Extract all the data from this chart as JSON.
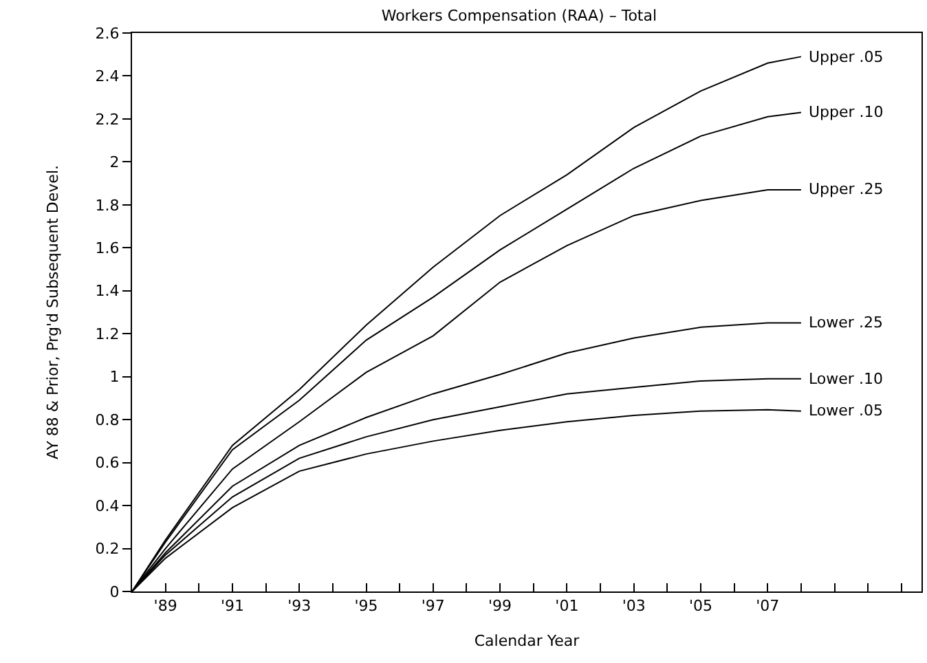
{
  "chart_data": {
    "type": "line",
    "title": "Workers Compensation (RAA) – Total",
    "xlabel": "Calendar Year",
    "ylabel": "AY 88 & Prior, Prg'd Subsequent Devel.",
    "x": [
      1988,
      1989,
      1991,
      1993,
      1995,
      1997,
      1999,
      2001,
      2003,
      2005,
      2007,
      2008
    ],
    "series": [
      {
        "name": "Upper .05",
        "color": "#000000",
        "values": [
          0,
          0.24,
          0.68,
          0.94,
          1.24,
          1.51,
          1.75,
          1.94,
          2.16,
          2.33,
          2.46,
          2.49
        ]
      },
      {
        "name": "Upper .10",
        "color": "#000000",
        "values": [
          0,
          0.23,
          0.66,
          0.89,
          1.17,
          1.37,
          1.59,
          1.78,
          1.97,
          2.12,
          2.21,
          2.23
        ]
      },
      {
        "name": "Upper .25",
        "color": "#000000",
        "values": [
          0,
          0.2,
          0.57,
          0.79,
          1.02,
          1.19,
          1.44,
          1.61,
          1.75,
          1.82,
          1.87,
          1.87
        ]
      },
      {
        "name": "Lower .25",
        "color": "#000000",
        "values": [
          0,
          0.18,
          0.49,
          0.68,
          0.81,
          0.92,
          1.01,
          1.11,
          1.18,
          1.23,
          1.25,
          1.25
        ]
      },
      {
        "name": "Lower .10",
        "color": "#000000",
        "values": [
          0,
          0.17,
          0.44,
          0.62,
          0.72,
          0.8,
          0.86,
          0.92,
          0.95,
          0.98,
          0.99,
          0.99
        ]
      },
      {
        "name": "Lower .05",
        "color": "#000000",
        "values": [
          0,
          0.155,
          0.39,
          0.56,
          0.64,
          0.7,
          0.75,
          0.79,
          0.82,
          0.84,
          0.846,
          0.84
        ]
      }
    ],
    "xlim": [
      1988,
      2011.6
    ],
    "xticks": [
      {
        "value": 1989,
        "label": "'89"
      },
      {
        "value": 1990,
        "label": null
      },
      {
        "value": 1991,
        "label": "'91"
      },
      {
        "value": 1992,
        "label": null
      },
      {
        "value": 1993,
        "label": "'93"
      },
      {
        "value": 1994,
        "label": null
      },
      {
        "value": 1995,
        "label": "'95"
      },
      {
        "value": 1996,
        "label": null
      },
      {
        "value": 1997,
        "label": "'97"
      },
      {
        "value": 1998,
        "label": null
      },
      {
        "value": 1999,
        "label": "'99"
      },
      {
        "value": 2000,
        "label": null
      },
      {
        "value": 2001,
        "label": "'01"
      },
      {
        "value": 2002,
        "label": null
      },
      {
        "value": 2003,
        "label": "'03"
      },
      {
        "value": 2004,
        "label": null
      },
      {
        "value": 2005,
        "label": "'05"
      },
      {
        "value": 2006,
        "label": null
      },
      {
        "value": 2007,
        "label": "'07"
      },
      {
        "value": 2008,
        "label": null
      },
      {
        "value": 2009,
        "label": null
      },
      {
        "value": 2010,
        "label": null
      },
      {
        "value": 2011,
        "label": null
      }
    ],
    "ylim": [
      0,
      2.6
    ],
    "yticks": [
      0,
      0.2,
      0.4,
      0.6,
      0.8,
      1,
      1.2,
      1.4,
      1.6,
      1.8,
      2,
      2.2,
      2.4,
      2.6
    ],
    "grid": false,
    "legend": false,
    "marker": "none",
    "line_style": "solid"
  }
}
